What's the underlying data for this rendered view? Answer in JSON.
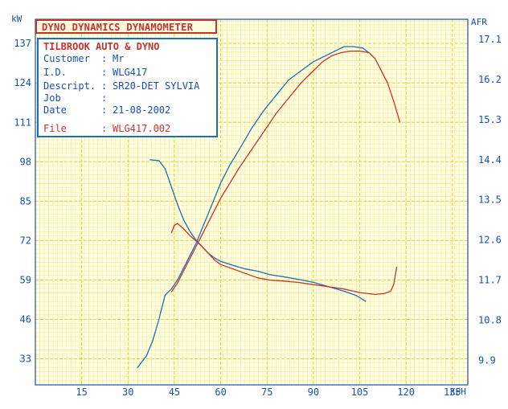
{
  "header": {
    "title": "DYNO DYNAMICS DYNAMOMETER"
  },
  "info": {
    "shop": "TILBROOK AUTO & DYNO",
    "rows": [
      {
        "label": "Customer",
        "sep": ":",
        "value": "Mr"
      },
      {
        "label": "I.D.",
        "sep": ":",
        "value": "WLG417"
      },
      {
        "label": "Descript.",
        "sep": ":",
        "value": "SR20-DET SYLVIA"
      },
      {
        "label": "Job",
        "sep": ":",
        "value": ""
      },
      {
        "label": "Date",
        "sep": ":",
        "value": "21-08-2002"
      },
      {
        "label": "File",
        "sep": ":",
        "value": "WLG417.002"
      }
    ]
  },
  "colors": {
    "background": "#ffffff",
    "grid_minor": "#f4ee8a",
    "grid_major": "#e6d24a",
    "power_blue": "#1a6fb8",
    "power_red": "#c8322c",
    "axis_text": "#1a4fb0",
    "frame": "#1a4fb0"
  },
  "chart_data": {
    "type": "line",
    "title": "DYNO DYNAMICS DYNAMOMETER",
    "xlabel": "KPH",
    "ylabel": "kW",
    "y2label": "AFR",
    "xlim": [
      0,
      140
    ],
    "ylim": [
      24.4,
      145
    ],
    "y2lim": [
      9.35,
      17.55
    ],
    "x_ticks": [
      15,
      30,
      45,
      60,
      75,
      90,
      105,
      120,
      135
    ],
    "y_ticks": [
      33,
      46,
      59,
      72,
      85,
      98,
      111,
      124,
      137
    ],
    "y2_ticks": [
      9.9,
      10.8,
      11.7,
      12.6,
      13.5,
      14.4,
      15.3,
      16.2,
      17.1
    ],
    "grid": true,
    "series": [
      {
        "axis": "y",
        "color": "#1a6fb8",
        "x": [
          33,
          36,
          38,
          40,
          42,
          44,
          46,
          48,
          50,
          52,
          54,
          56,
          58,
          60,
          63,
          66,
          70,
          74,
          78,
          82,
          86,
          90,
          94,
          98,
          100,
          103,
          106,
          108
        ],
        "y": [
          30,
          34,
          39,
          46,
          54,
          56,
          59,
          63,
          67,
          71,
          76,
          81,
          86,
          91,
          97,
          102,
          109,
          115,
          120,
          125,
          128,
          131,
          133,
          135,
          136,
          136,
          135.5,
          134
        ]
      },
      {
        "axis": "y",
        "color": "#c8322c",
        "x": [
          44,
          46,
          48,
          50,
          52,
          54,
          56,
          58,
          60,
          63,
          66,
          70,
          74,
          78,
          82,
          86,
          90,
          93,
          96,
          99,
          102,
          105,
          108,
          110,
          112,
          114,
          116,
          118
        ],
        "y": [
          55,
          58,
          62,
          66,
          70,
          74,
          78,
          82,
          86,
          91,
          96,
          102,
          108,
          114,
          119,
          124,
          128,
          131,
          133,
          134,
          134.5,
          134.5,
          134,
          132,
          128,
          124,
          118,
          111
        ]
      },
      {
        "axis": "y2",
        "color": "#1a6fb8",
        "x": [
          37,
          40,
          42,
          44,
          46,
          48,
          50,
          52,
          54,
          56,
          58,
          60,
          64,
          68,
          72,
          76,
          80,
          85,
          90,
          95,
          100,
          104,
          107
        ],
        "y": [
          14.4,
          14.38,
          14.2,
          13.8,
          13.4,
          13.05,
          12.8,
          12.6,
          12.45,
          12.3,
          12.2,
          12.12,
          12.03,
          11.95,
          11.9,
          11.82,
          11.78,
          11.72,
          11.65,
          11.55,
          11.45,
          11.35,
          11.22
        ]
      },
      {
        "axis": "y2",
        "color": "#c8322c",
        "x": [
          44,
          45,
          46,
          48,
          50,
          52,
          54,
          56,
          58,
          60,
          64,
          68,
          72,
          76,
          80,
          85,
          90,
          95,
          100,
          105,
          110,
          113,
          115,
          116,
          117
        ],
        "y": [
          12.75,
          12.93,
          12.97,
          12.85,
          12.7,
          12.58,
          12.45,
          12.3,
          12.15,
          12.05,
          11.95,
          11.85,
          11.75,
          11.7,
          11.68,
          11.65,
          11.6,
          11.55,
          11.5,
          11.42,
          11.38,
          11.4,
          11.45,
          11.6,
          12.0
        ]
      }
    ]
  }
}
